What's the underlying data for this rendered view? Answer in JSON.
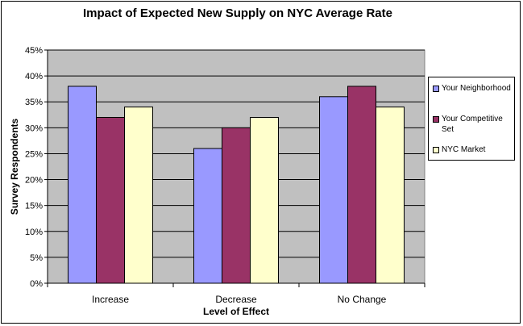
{
  "chart_data": {
    "type": "bar",
    "title": "Impact of Expected New Supply on NYC Average Rate",
    "xlabel": "Level of Effect",
    "ylabel": "Survey Respondents",
    "categories": [
      "Increase",
      "Decrease",
      "No Change"
    ],
    "ylim": [
      0,
      45
    ],
    "yticks": [
      "0%",
      "5%",
      "10%",
      "15%",
      "20%",
      "25%",
      "30%",
      "35%",
      "40%",
      "45%"
    ],
    "grid": true,
    "legend_position": "right",
    "series": [
      {
        "name": "Your Neighborhood",
        "values": [
          38,
          26,
          36
        ],
        "color": "#9999ff"
      },
      {
        "name": "Your Competitive Set",
        "values": [
          32,
          30,
          38
        ],
        "color": "#993366"
      },
      {
        "name": "NYC Market",
        "values": [
          34,
          32,
          34
        ],
        "color": "#ffffcc"
      }
    ],
    "plot_background": "#c0c0c0"
  }
}
